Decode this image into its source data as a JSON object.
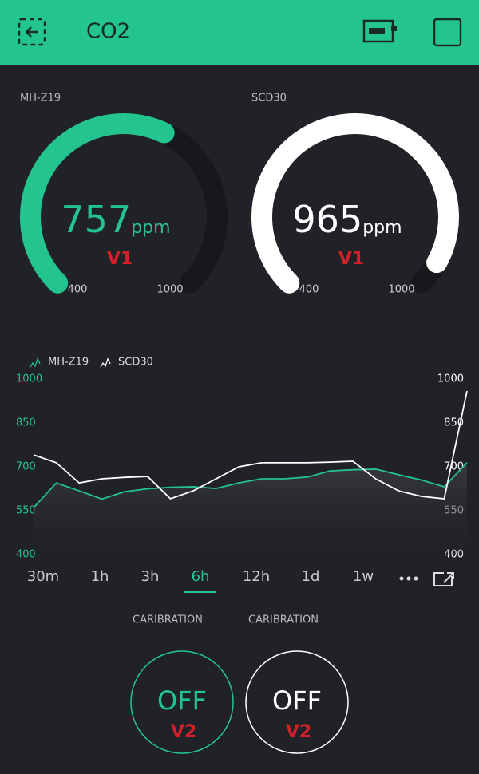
{
  "header": {
    "title": "CO2"
  },
  "gauges": [
    {
      "label": "MH-Z19",
      "value": 757,
      "unit": "ppm",
      "pin": "V1",
      "min": 400,
      "max": 1000,
      "color": "#23c48e"
    },
    {
      "label": "SCD30",
      "value": 965,
      "unit": "ppm",
      "pin": "V1",
      "min": 400,
      "max": 1000,
      "color": "#ffffff"
    }
  ],
  "chart_data": {
    "type": "line",
    "series": [
      {
        "name": "MH-Z19",
        "color": "#23c48e",
        "values": [
          560,
          645,
          618,
          590,
          615,
          625,
          630,
          632,
          626,
          645,
          659,
          659,
          665,
          686,
          690,
          692,
          673,
          655,
          632,
          714
        ]
      },
      {
        "name": "SCD30",
        "color": "#ffffff",
        "axis": "y2",
        "values": [
          741,
          714,
          645,
          659,
          664,
          667,
          591,
          618,
          659,
          700,
          714,
          714,
          714,
          716,
          719,
          659,
          618,
          599,
          591,
          959
        ]
      }
    ],
    "ylim": [
      400,
      1000
    ],
    "yticks": [
      400,
      550,
      700,
      850,
      1000
    ],
    "y2lim": [
      400,
      1000
    ],
    "y2ticks": [
      400,
      550,
      700,
      850,
      1000
    ],
    "ranges": [
      "30m",
      "1h",
      "3h",
      "6h",
      "12h",
      "1d",
      "1w"
    ],
    "active_range": 3
  },
  "buttons": [
    {
      "label": "CARIBRATION",
      "state": "OFF",
      "pin": "V2",
      "color": "#23c48e"
    },
    {
      "label": "CARIBRATION",
      "state": "OFF",
      "pin": "V2",
      "color": "#ffffff"
    }
  ]
}
